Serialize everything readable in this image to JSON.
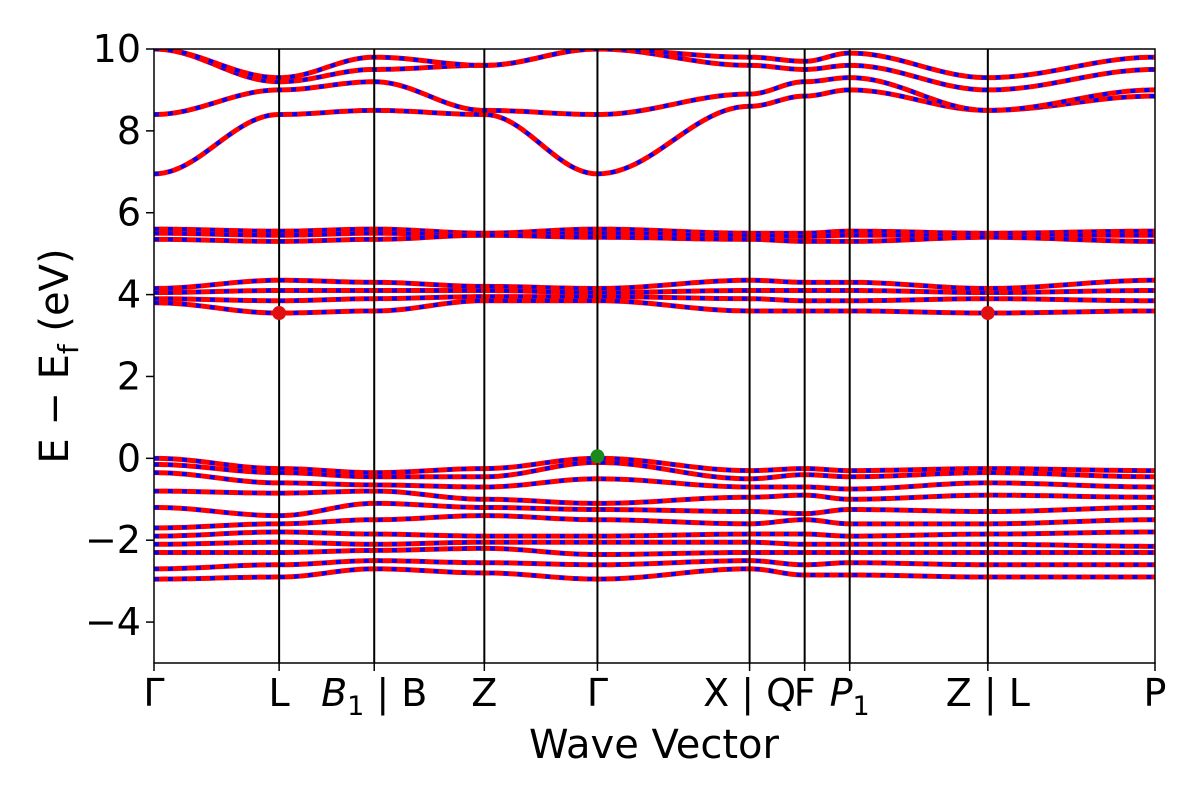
{
  "chart_data": {
    "type": "line",
    "title": "",
    "xlabel": "Wave Vector",
    "ylabel": "E − E_f (eV)",
    "ylabel_parts": {
      "main": "E − E",
      "sub": "f",
      "unit": " (eV)"
    },
    "ylim": [
      -5,
      10
    ],
    "yticks": [
      {
        "value": 10,
        "label": "10"
      },
      {
        "value": 8,
        "label": "8"
      },
      {
        "value": 6,
        "label": "6"
      },
      {
        "value": 4,
        "label": "4"
      },
      {
        "value": 2,
        "label": "2"
      },
      {
        "value": 0,
        "label": "0"
      },
      {
        "value": -2,
        "label": "−2"
      },
      {
        "value": -4,
        "label": "−4"
      }
    ],
    "xlim": [
      0,
      10
    ],
    "kpoints": [
      {
        "x": 0.0,
        "label": "Γ"
      },
      {
        "x": 1.25,
        "label": "L"
      },
      {
        "x": 2.2,
        "label": "B",
        "sub": "1",
        "suffix": " | B"
      },
      {
        "x": 3.3,
        "label": "Z"
      },
      {
        "x": 4.43,
        "label": "Γ"
      },
      {
        "x": 5.95,
        "label": "X | Q"
      },
      {
        "x": 6.5,
        "label": "F"
      },
      {
        "x": 6.95,
        "label": "P",
        "sub": "1"
      },
      {
        "x": 8.33,
        "label": "Z | L"
      },
      {
        "x": 10.0,
        "label": "P"
      }
    ],
    "series_colors": {
      "spin_up": "#ff0000",
      "spin_down": "#0000ff"
    },
    "band_groups": [
      {
        "name": "cond-high-1",
        "values": [
          6.95,
          8.4,
          8.5,
          8.4,
          6.95,
          8.6,
          8.85,
          9.0,
          8.5,
          8.85
        ]
      },
      {
        "name": "cond-high-2",
        "values": [
          8.4,
          9.0,
          9.2,
          8.5,
          8.4,
          8.9,
          9.2,
          9.3,
          8.5,
          9.0
        ]
      },
      {
        "name": "cond-high-3",
        "values": [
          10.0,
          9.2,
          9.5,
          9.6,
          10.0,
          9.6,
          9.5,
          9.6,
          9.0,
          9.5
        ]
      },
      {
        "name": "cond-high-4",
        "values": [
          10.0,
          9.3,
          9.8,
          9.6,
          10.0,
          9.8,
          9.7,
          9.9,
          9.3,
          9.8
        ]
      },
      {
        "name": "flat-5-a",
        "values": [
          5.6,
          5.55,
          5.6,
          5.5,
          5.6,
          5.5,
          5.5,
          5.55,
          5.5,
          5.55
        ]
      },
      {
        "name": "flat-5-b",
        "values": [
          5.5,
          5.45,
          5.5,
          5.45,
          5.5,
          5.45,
          5.42,
          5.45,
          5.45,
          5.45
        ]
      },
      {
        "name": "flat-5-c",
        "values": [
          5.35,
          5.3,
          5.35,
          5.45,
          5.4,
          5.35,
          5.3,
          5.3,
          5.4,
          5.3
        ]
      },
      {
        "name": "flat-4-a",
        "values": [
          4.15,
          4.35,
          4.3,
          4.2,
          4.15,
          4.35,
          4.3,
          4.3,
          4.15,
          4.35
        ]
      },
      {
        "name": "flat-4-b",
        "values": [
          4.05,
          4.1,
          4.1,
          4.1,
          4.05,
          4.1,
          4.1,
          4.1,
          4.05,
          4.1
        ]
      },
      {
        "name": "flat-4-c",
        "values": [
          3.9,
          3.85,
          3.9,
          3.95,
          3.95,
          3.9,
          3.85,
          3.85,
          3.9,
          3.85
        ]
      },
      {
        "name": "flat-4-d",
        "values": [
          3.8,
          3.55,
          3.6,
          3.85,
          3.85,
          3.6,
          3.6,
          3.6,
          3.55,
          3.6
        ]
      },
      {
        "name": "val-1",
        "values": [
          0.0,
          -0.25,
          -0.35,
          -0.25,
          0.0,
          -0.3,
          -0.25,
          -0.3,
          -0.25,
          -0.3
        ]
      },
      {
        "name": "val-2",
        "values": [
          -0.15,
          -0.35,
          -0.45,
          -0.45,
          -0.1,
          -0.5,
          -0.4,
          -0.45,
          -0.35,
          -0.45
        ]
      },
      {
        "name": "val-3",
        "values": [
          -0.35,
          -0.6,
          -0.65,
          -0.7,
          -0.5,
          -0.7,
          -0.7,
          -0.75,
          -0.6,
          -0.7
        ]
      },
      {
        "name": "val-4",
        "values": [
          -0.8,
          -0.85,
          -0.8,
          -1.0,
          -1.1,
          -0.95,
          -0.9,
          -1.0,
          -0.9,
          -0.95
        ]
      },
      {
        "name": "val-5",
        "values": [
          -1.2,
          -1.4,
          -1.1,
          -1.2,
          -1.25,
          -1.3,
          -1.35,
          -1.25,
          -1.3,
          -1.2
        ]
      },
      {
        "name": "val-6",
        "values": [
          -1.7,
          -1.6,
          -1.5,
          -1.4,
          -1.5,
          -1.6,
          -1.5,
          -1.6,
          -1.6,
          -1.5
        ]
      },
      {
        "name": "val-7",
        "values": [
          -1.9,
          -1.8,
          -1.85,
          -1.9,
          -1.9,
          -1.85,
          -1.85,
          -1.9,
          -1.85,
          -1.8
        ]
      },
      {
        "name": "val-8",
        "values": [
          -2.1,
          -2.05,
          -2.1,
          -2.05,
          -2.05,
          -2.05,
          -2.1,
          -2.1,
          -2.1,
          -2.15
        ]
      },
      {
        "name": "val-9",
        "values": [
          -2.3,
          -2.3,
          -2.25,
          -2.2,
          -2.35,
          -2.3,
          -2.3,
          -2.3,
          -2.3,
          -2.3
        ]
      },
      {
        "name": "val-10",
        "values": [
          -2.7,
          -2.6,
          -2.5,
          -2.55,
          -2.6,
          -2.5,
          -2.6,
          -2.55,
          -2.6,
          -2.6
        ]
      },
      {
        "name": "val-11",
        "values": [
          -2.95,
          -2.9,
          -2.7,
          -2.8,
          -2.95,
          -2.7,
          -2.85,
          -2.85,
          -2.9,
          -2.9
        ]
      }
    ],
    "markers": [
      {
        "name": "cbm-marker-L",
        "x": 1.25,
        "y": 3.55,
        "color": "#e01010"
      },
      {
        "name": "cbm-marker-Z",
        "x": 8.33,
        "y": 3.55,
        "color": "#e01010"
      },
      {
        "name": "vbm-marker-Gamma",
        "x": 4.43,
        "y": 0.05,
        "color": "#1a8a1a"
      }
    ]
  }
}
